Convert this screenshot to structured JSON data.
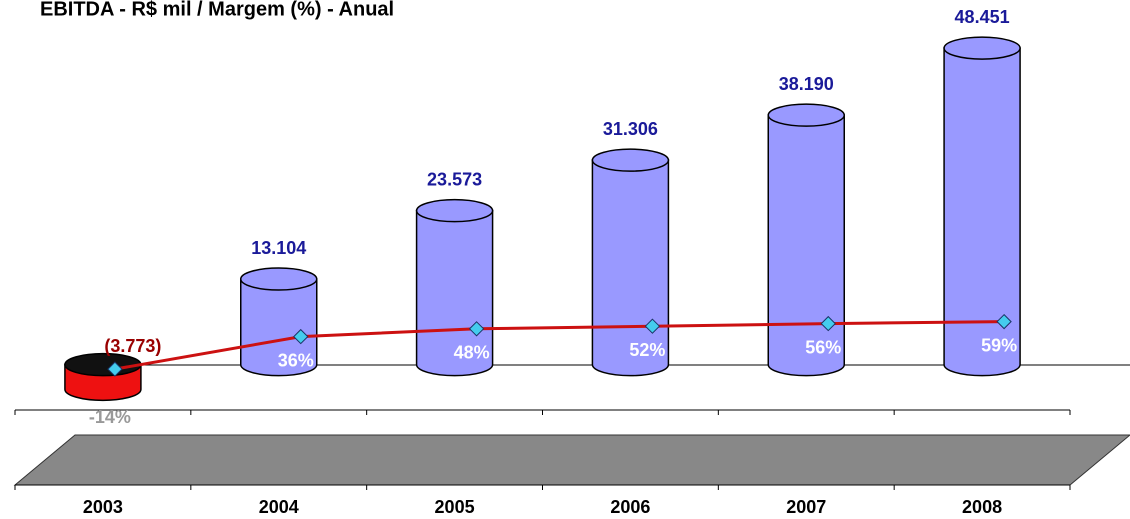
{
  "chart_data": {
    "type": "bar",
    "title": "EBITDA - R$ mil / Margem (%) - Anual",
    "categories": [
      "2003",
      "2004",
      "2005",
      "2006",
      "2007",
      "2008"
    ],
    "ylim": [
      -10000,
      50000
    ],
    "y2lim": [
      -20,
      100
    ],
    "series": [
      {
        "name": "EBITDA",
        "type": "bar",
        "color": "#9999ff",
        "negative_color": "#ee1111",
        "values": [
          -3773,
          13104,
          23573,
          31306,
          38190,
          48451
        ],
        "value_labels": [
          "(3.773)",
          "13.104",
          "23.573",
          "31.306",
          "38.190",
          "48.451"
        ]
      },
      {
        "name": "Margem",
        "type": "line",
        "axis": "y2",
        "color": "#cc1111",
        "values": [
          -14,
          36,
          48,
          52,
          56,
          59
        ],
        "value_labels": [
          "-14%",
          "36%",
          "48%",
          "52%",
          "56%",
          "59%"
        ]
      }
    ]
  }
}
